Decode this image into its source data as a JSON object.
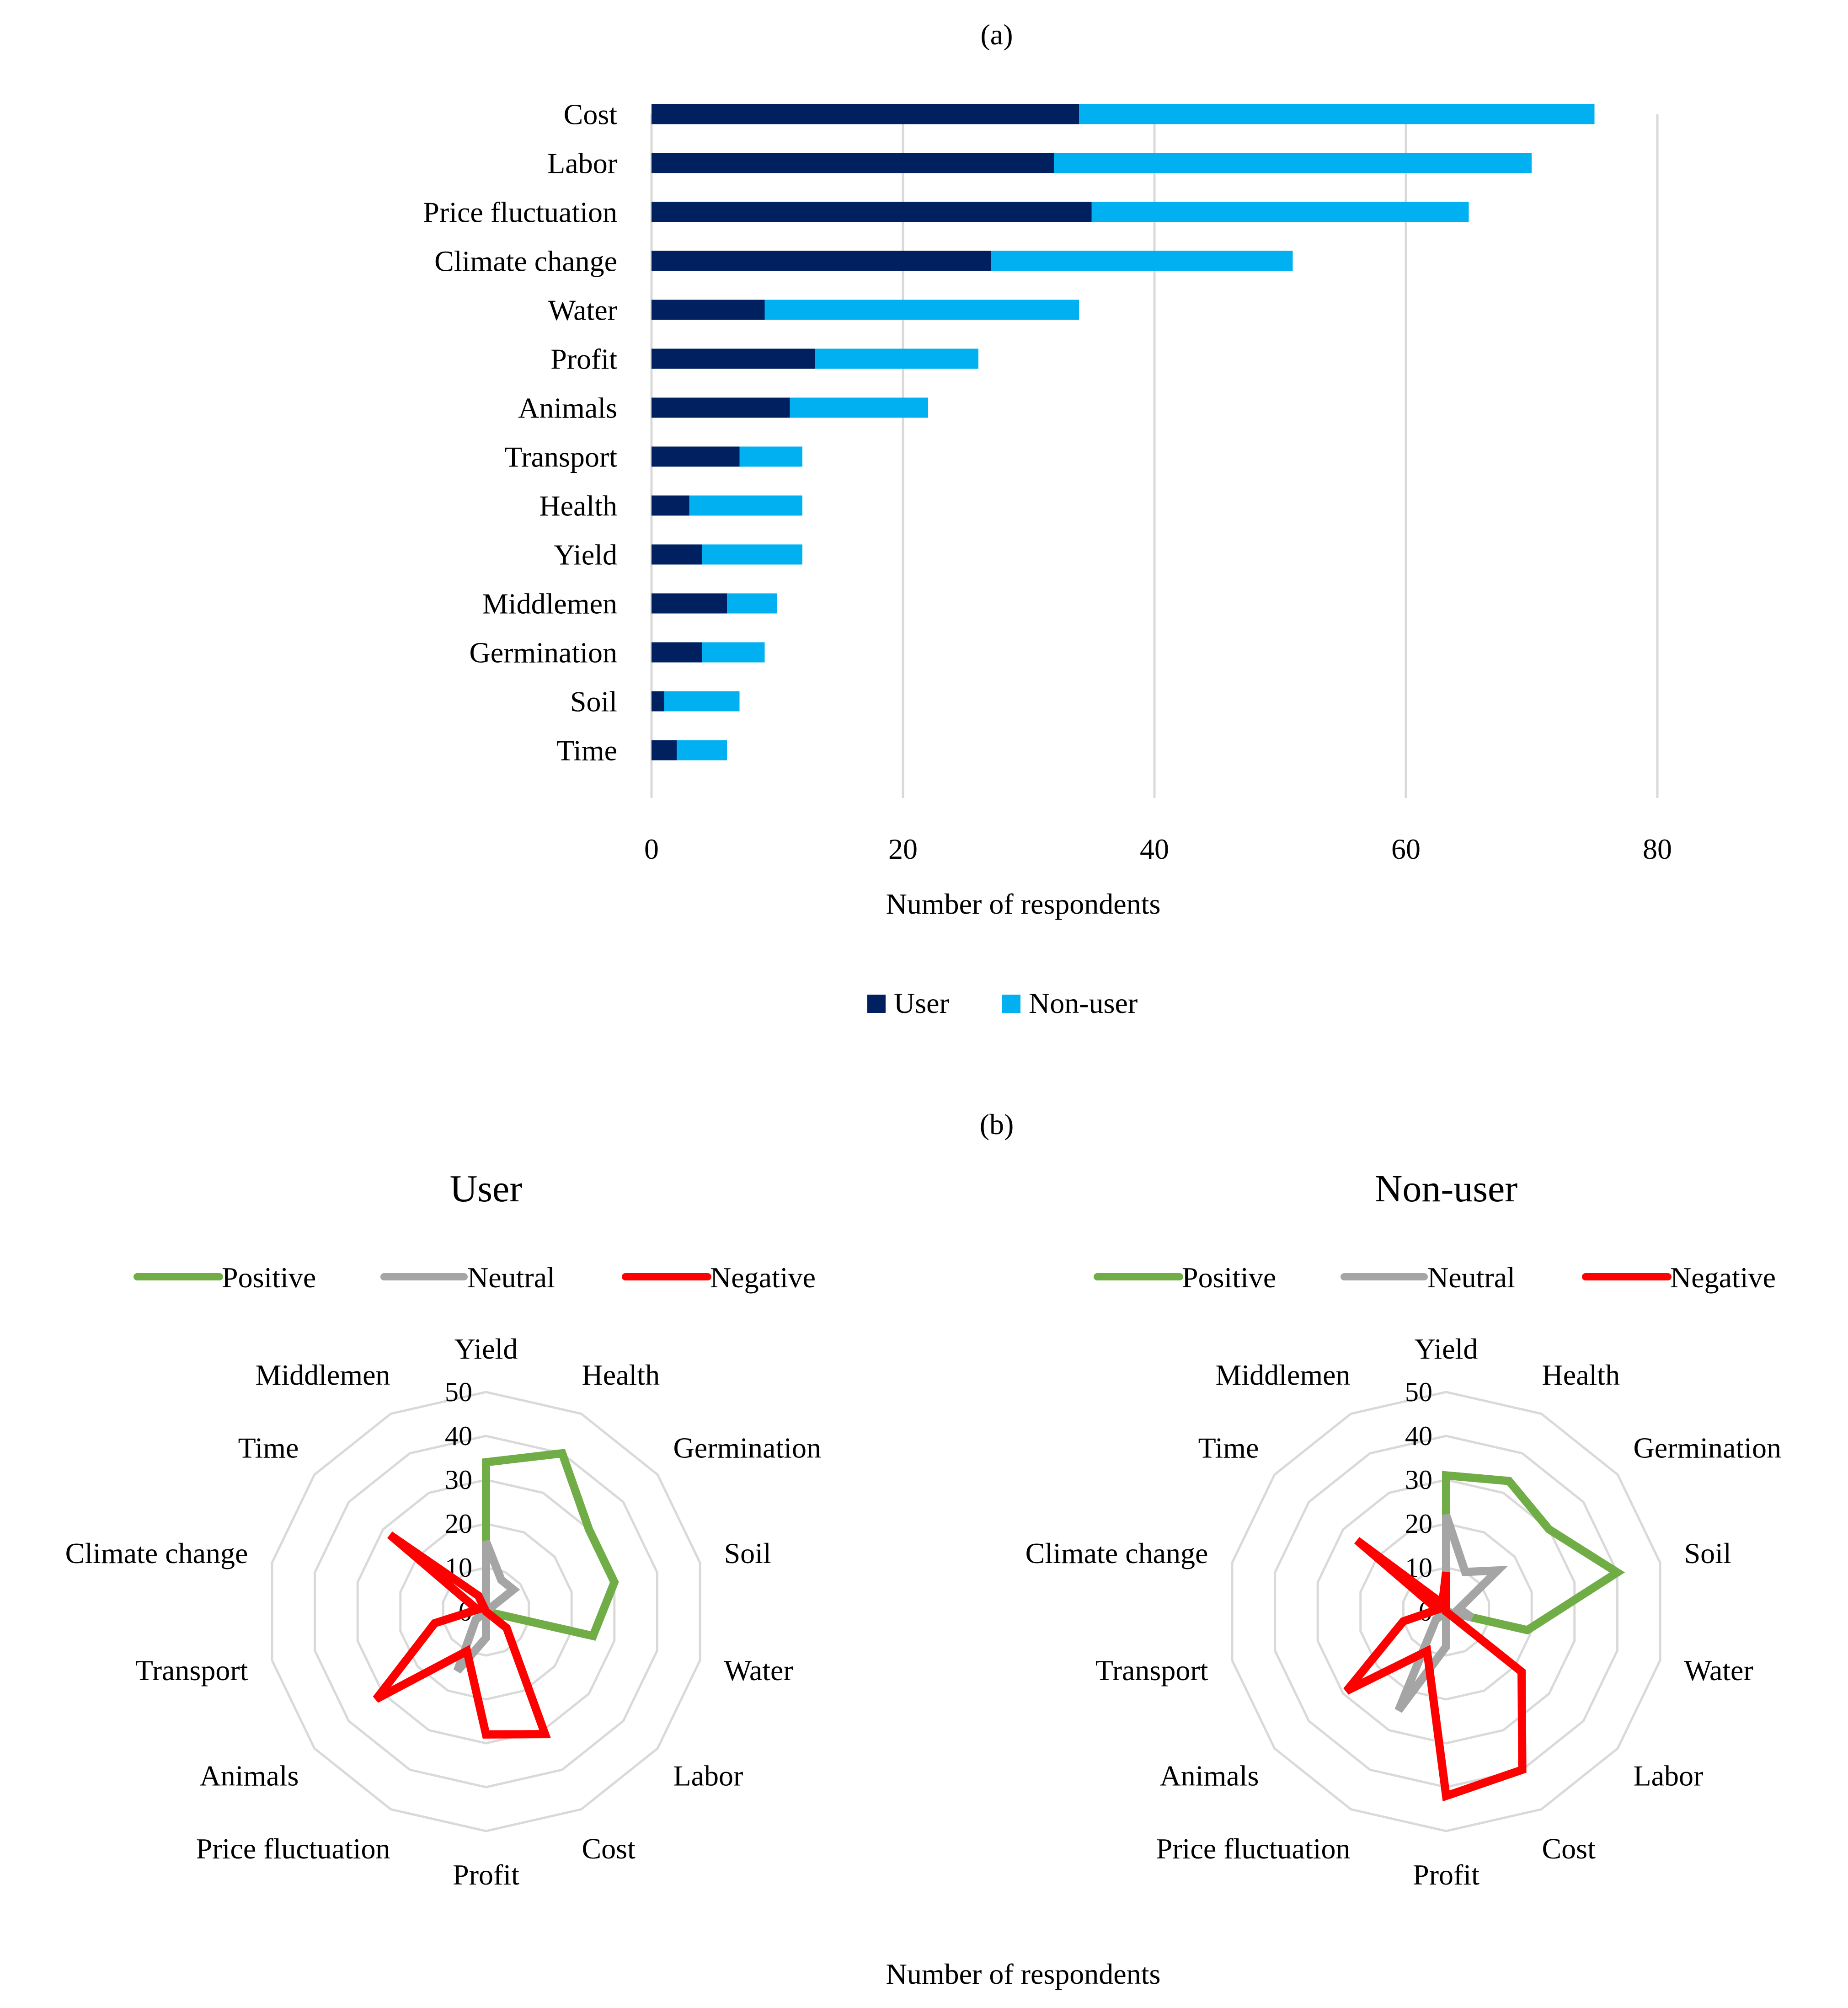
{
  "figure_axis_label": "Number of respondents",
  "chart_data": [
    {
      "panel": "(a)",
      "type": "bar",
      "orientation": "horizontal",
      "stacked": true,
      "categories": [
        "Cost",
        "Labor",
        "Price fluctuation",
        "Climate change",
        "Water",
        "Profit",
        "Animals",
        "Transport",
        "Health",
        "Yield",
        "Middlemen",
        "Germination",
        "Soil",
        "Time"
      ],
      "series": [
        {
          "name": "User",
          "color": "#002060",
          "values": [
            34,
            32,
            35,
            27,
            9,
            13,
            11,
            7,
            3,
            4,
            6,
            4,
            1,
            2
          ]
        },
        {
          "name": "Non-user",
          "color": "#00b0f0",
          "values": [
            41,
            38,
            30,
            24,
            25,
            13,
            11,
            5,
            9,
            8,
            4,
            5,
            6,
            4
          ]
        }
      ],
      "xlabel": "Number of respondents",
      "xlim": [
        0,
        80
      ],
      "xticks": [
        "0",
        "20",
        "40",
        "60",
        "80"
      ],
      "grid": "vertical",
      "legend": "bottom-center"
    },
    {
      "panel": "(b)",
      "type": "radar",
      "title": "User",
      "categories": [
        "Yield",
        "Health",
        "Germination",
        "Soil",
        "Water",
        "Labor",
        "Cost",
        "Profit",
        "Price fluctuation",
        "Animals",
        "Transport",
        "Climate change",
        "Time",
        "Middlemen"
      ],
      "rlim": [
        0,
        50
      ],
      "rticks": [
        "0",
        "10",
        "20",
        "30",
        "40",
        "50"
      ],
      "series": [
        {
          "name": "Positive",
          "color": "#70ad47",
          "values": [
            34,
            40,
            30,
            30,
            25,
            0,
            0,
            0,
            0,
            0,
            0,
            0,
            0,
            0
          ]
        },
        {
          "name": "Neutral",
          "color": "#a5a5a5",
          "values": [
            16,
            8,
            8,
            0,
            0,
            0,
            0,
            6,
            15,
            3,
            0,
            0,
            0,
            0
          ]
        },
        {
          "name": "Negative",
          "color": "#ff0000",
          "values": [
            0,
            0,
            0,
            0,
            0,
            6,
            31,
            28,
            10,
            32,
            12,
            2,
            28,
            4
          ]
        }
      ],
      "legend": "top"
    },
    {
      "panel": "(b)",
      "type": "radar",
      "title": "Non-user",
      "categories": [
        "Yield",
        "Health",
        "Germination",
        "Soil",
        "Water",
        "Labor",
        "Cost",
        "Profit",
        "Price fluctuation",
        "Animals",
        "Transport",
        "Climate change",
        "Time",
        "Middlemen"
      ],
      "rlim": [
        0,
        50
      ],
      "rticks": [
        "0",
        "10",
        "20",
        "30",
        "40",
        "50"
      ],
      "series": [
        {
          "name": "Positive",
          "color": "#70ad47",
          "values": [
            31,
            33,
            30,
            40,
            19,
            0,
            0,
            0,
            0,
            0,
            0,
            0,
            0,
            0
          ]
        },
        {
          "name": "Neutral",
          "color": "#a5a5a5",
          "values": [
            22,
            10,
            15,
            3,
            6,
            0,
            0,
            8,
            25,
            3,
            0,
            0,
            0,
            0
          ]
        },
        {
          "name": "Negative",
          "color": "#ff0000",
          "values": [
            9,
            0,
            0,
            0,
            0,
            22,
            40,
            42,
            10,
            29,
            10,
            2,
            26,
            2
          ]
        }
      ],
      "legend": "top"
    }
  ]
}
